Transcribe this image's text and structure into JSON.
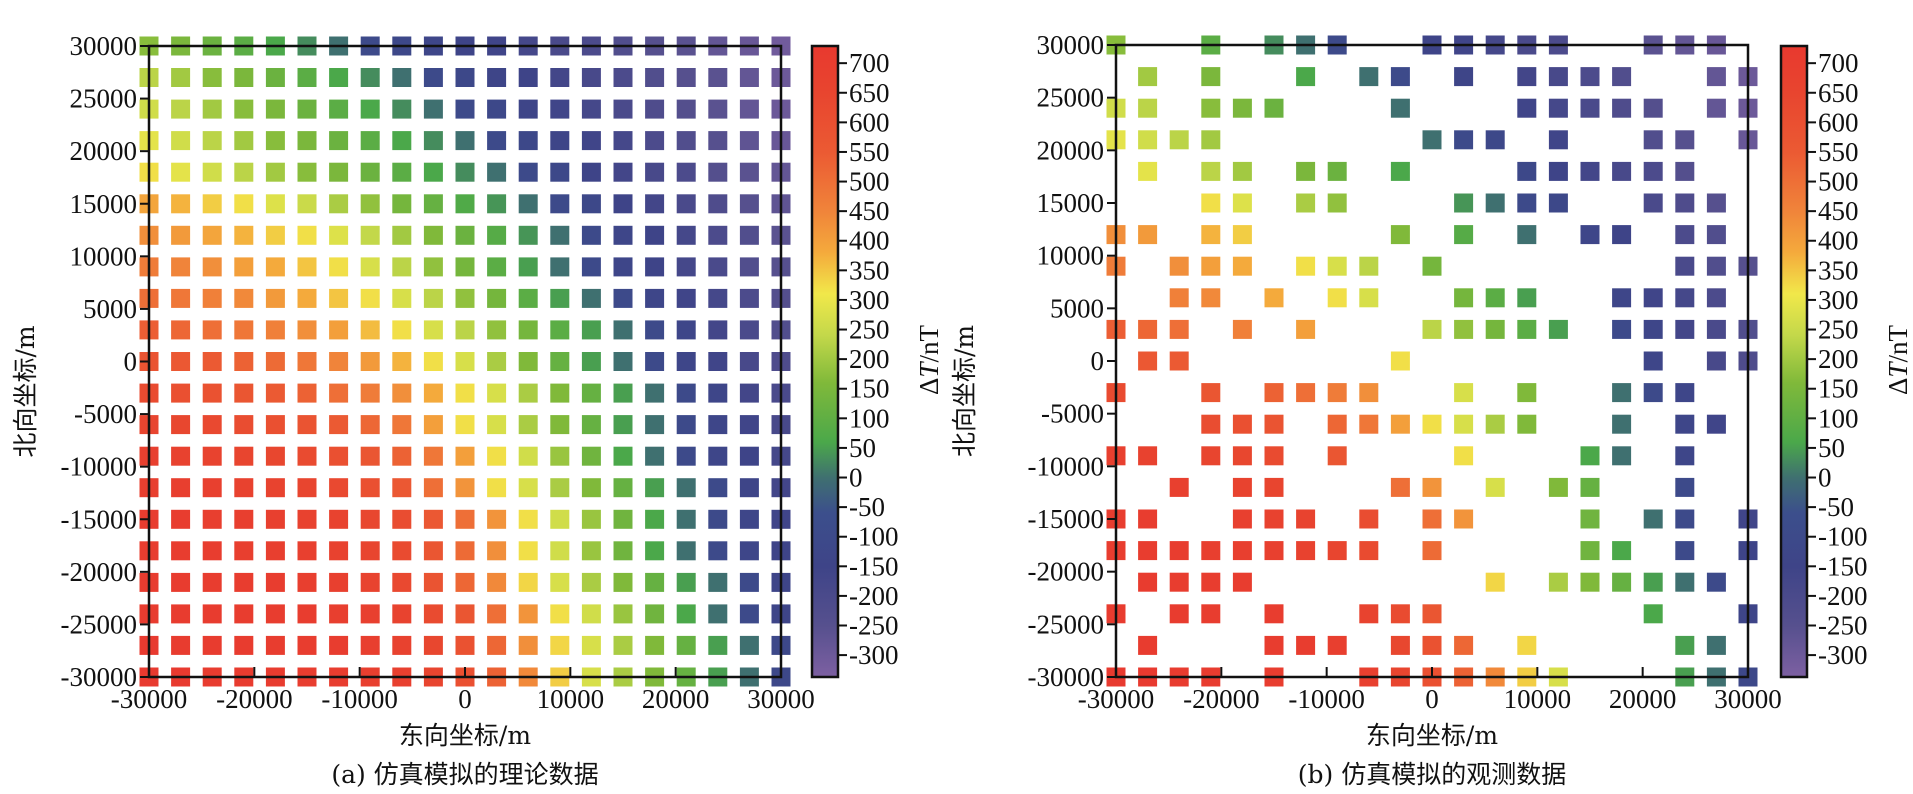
{
  "chart_data": [
    {
      "type": "heatmap",
      "panel": "a",
      "caption": "(a) 仿真模拟的理论数据",
      "xlabel": "东向坐标/m",
      "ylabel": "北向坐标/m",
      "colorbar_label": "ΔT/nT",
      "xlim": [
        -30000,
        30000
      ],
      "ylim": [
        -30000,
        30000
      ],
      "x_ticks": [
        -30000,
        -20000,
        -10000,
        0,
        10000,
        20000,
        30000
      ],
      "x_tick_labels": [
        "-30000",
        "-20000",
        "-10000",
        "0",
        "10000",
        "20000",
        "30000"
      ],
      "y_ticks": [
        30000,
        25000,
        20000,
        15000,
        10000,
        5000,
        0,
        -5000,
        -10000,
        -15000,
        -20000,
        -25000,
        -30000
      ],
      "y_tick_labels": [
        "30000",
        "25000",
        "20000",
        "15000",
        "10000",
        "5000",
        "0",
        "-5000",
        "-10000",
        "-15000",
        "-20000",
        "-25000",
        "-30000"
      ],
      "colorbar_range": [
        -337,
        729
      ],
      "colorbar_ticks": [
        700,
        650,
        600,
        550,
        500,
        450,
        400,
        350,
        300,
        250,
        200,
        150,
        100,
        50,
        0,
        -50,
        -100,
        -150,
        -200,
        -250,
        -300
      ],
      "colorbar_tick_labels": [
        "700",
        "650",
        "600",
        "550",
        "500",
        "450",
        "400",
        "350",
        "300",
        "250",
        "200",
        "150",
        "100",
        "50",
        "0",
        "-50",
        "-100",
        "-150",
        "-200",
        "-250",
        "-300"
      ],
      "grid_x": [
        -30000,
        -27000,
        -24000,
        -21000,
        -18000,
        -15000,
        -12000,
        -9000,
        -6000,
        -3000,
        0,
        3000,
        6000,
        9000,
        12000,
        15000,
        18000,
        21000,
        24000,
        27000,
        30000
      ],
      "grid_y": [
        30000,
        27000,
        24000,
        21000,
        18000,
        15000,
        12000,
        9000,
        6000,
        3000,
        0,
        -3000,
        -6000,
        -9000,
        -12000,
        -15000,
        -18000,
        -21000,
        -24000,
        -27000,
        -30000
      ],
      "values_nT": [
        [
          170,
          150,
          120,
          90,
          60,
          30,
          0,
          -100,
          -120,
          -130,
          -150,
          -160,
          -180,
          -200,
          -210,
          -230,
          -250,
          -260,
          -280,
          -290,
          -310
        ],
        [
          230,
          200,
          170,
          150,
          120,
          90,
          60,
          30,
          0,
          -100,
          -120,
          -140,
          -150,
          -170,
          -190,
          -210,
          -230,
          -250,
          -260,
          -280,
          -300
        ],
        [
          260,
          230,
          200,
          170,
          150,
          120,
          90,
          60,
          30,
          0,
          -100,
          -120,
          -140,
          -160,
          -180,
          -200,
          -220,
          -240,
          -260,
          -280,
          -300
        ],
        [
          290,
          260,
          230,
          200,
          170,
          150,
          120,
          90,
          60,
          30,
          0,
          -100,
          -120,
          -140,
          -160,
          -180,
          -210,
          -230,
          -250,
          -270,
          -290
        ],
        [
          320,
          290,
          260,
          230,
          200,
          170,
          150,
          120,
          90,
          60,
          30,
          0,
          -100,
          -120,
          -150,
          -170,
          -190,
          -210,
          -240,
          -260,
          -280
        ],
        [
          390,
          370,
          340,
          320,
          280,
          250,
          210,
          180,
          140,
          110,
          70,
          40,
          0,
          -100,
          -120,
          -150,
          -170,
          -200,
          -220,
          -250,
          -270
        ],
        [
          430,
          410,
          390,
          370,
          340,
          320,
          280,
          240,
          200,
          160,
          120,
          80,
          40,
          0,
          -100,
          -130,
          -150,
          -180,
          -210,
          -230,
          -260
        ],
        [
          470,
          450,
          430,
          400,
          380,
          350,
          320,
          270,
          230,
          180,
          140,
          90,
          50,
          0,
          -100,
          -130,
          -150,
          -180,
          -200,
          -230,
          -250
        ],
        [
          500,
          480,
          460,
          440,
          410,
          380,
          350,
          320,
          270,
          230,
          180,
          140,
          90,
          50,
          0,
          -100,
          -130,
          -160,
          -180,
          -210,
          -240
        ],
        [
          540,
          520,
          500,
          480,
          460,
          430,
          400,
          360,
          320,
          270,
          230,
          180,
          140,
          90,
          50,
          0,
          -100,
          -130,
          -170,
          -200,
          -230
        ],
        [
          580,
          560,
          550,
          530,
          510,
          480,
          450,
          410,
          370,
          320,
          270,
          210,
          160,
          110,
          50,
          0,
          -100,
          -130,
          -160,
          -190,
          -220
        ],
        [
          620,
          600,
          590,
          570,
          550,
          530,
          500,
          470,
          430,
          380,
          320,
          270,
          210,
          160,
          110,
          50,
          0,
          -100,
          -130,
          -170,
          -200
        ],
        [
          650,
          640,
          630,
          610,
          600,
          580,
          550,
          520,
          480,
          400,
          320,
          270,
          210,
          160,
          110,
          50,
          0,
          -100,
          -130,
          -160,
          -190
        ],
        [
          680,
          670,
          660,
          650,
          640,
          620,
          600,
          570,
          530,
          480,
          400,
          320,
          260,
          190,
          130,
          60,
          0,
          -100,
          -130,
          -150,
          -180
        ],
        [
          690,
          690,
          680,
          670,
          660,
          650,
          630,
          600,
          560,
          500,
          420,
          320,
          270,
          210,
          160,
          110,
          50,
          0,
          -100,
          -140,
          -170
        ],
        [
          700,
          700,
          690,
          690,
          680,
          670,
          660,
          640,
          610,
          560,
          500,
          420,
          320,
          260,
          190,
          130,
          60,
          0,
          -100,
          -130,
          -160
        ],
        [
          700,
          700,
          700,
          690,
          690,
          680,
          670,
          650,
          620,
          570,
          510,
          430,
          320,
          260,
          190,
          130,
          60,
          0,
          -100,
          -130,
          -150
        ],
        [
          710,
          710,
          700,
          700,
          700,
          690,
          680,
          660,
          630,
          580,
          520,
          440,
          330,
          270,
          210,
          160,
          110,
          50,
          0,
          -100,
          -140
        ],
        [
          710,
          710,
          710,
          700,
          700,
          700,
          690,
          680,
          660,
          620,
          570,
          500,
          420,
          320,
          260,
          190,
          130,
          60,
          0,
          -100,
          -140
        ],
        [
          720,
          710,
          710,
          710,
          700,
          700,
          700,
          690,
          670,
          640,
          590,
          520,
          430,
          330,
          270,
          210,
          160,
          110,
          50,
          0,
          -120
        ],
        [
          720,
          720,
          710,
          710,
          710,
          700,
          700,
          690,
          680,
          650,
          600,
          530,
          440,
          340,
          270,
          210,
          160,
          110,
          50,
          0,
          -120
        ]
      ]
    },
    {
      "type": "heatmap",
      "panel": "b",
      "caption": "(b) 仿真模拟的观测数据",
      "xlabel": "东向坐标/m",
      "ylabel": "北向坐标/m",
      "colorbar_label": "ΔT/nT",
      "xlim": [
        -30000,
        30000
      ],
      "ylim": [
        -30000,
        30000
      ],
      "x_ticks": [
        -30000,
        -20000,
        -10000,
        0,
        10000,
        20000,
        30000
      ],
      "x_tick_labels": [
        "-30000",
        "-20000",
        "-10000",
        "0",
        "10000",
        "20000",
        "30000"
      ],
      "y_ticks": [
        30000,
        25000,
        20000,
        15000,
        10000,
        5000,
        0,
        -5000,
        -10000,
        -15000,
        -20000,
        -25000,
        -30000
      ],
      "y_tick_labels": [
        "30000",
        "25000",
        "20000",
        "15000",
        "10000",
        "5000",
        "0",
        "-5000",
        "-10000",
        "-15000",
        "-20000",
        "-25000",
        "-30000"
      ],
      "colorbar_range": [
        -337,
        729
      ],
      "colorbar_ticks": [
        700,
        650,
        600,
        550,
        500,
        450,
        400,
        350,
        300,
        250,
        200,
        150,
        100,
        50,
        0,
        -50,
        -100,
        -150,
        -200,
        -250,
        -300
      ],
      "colorbar_tick_labels": [
        "700",
        "650",
        "600",
        "550",
        "500",
        "450",
        "400",
        "350",
        "300",
        "250",
        "200",
        "150",
        "100",
        "50",
        "0",
        "-50",
        "-100",
        "-150",
        "-200",
        "-250",
        "-300"
      ],
      "observed_from": "panel a values at sampled grid nodes",
      "observed_columns_by_row": [
        [
          0,
          3,
          5,
          6,
          7,
          10,
          11,
          12,
          13,
          14,
          17,
          18,
          19
        ],
        [
          1,
          3,
          6,
          8,
          9,
          11,
          13,
          14,
          15,
          16,
          19,
          20
        ],
        [
          0,
          1,
          3,
          4,
          5,
          9,
          13,
          14,
          15,
          16,
          17,
          19,
          20
        ],
        [
          0,
          1,
          2,
          3,
          10,
          11,
          12,
          14,
          17,
          18,
          20
        ],
        [
          1,
          3,
          4,
          6,
          7,
          9,
          13,
          14,
          15,
          16,
          17,
          18
        ],
        [
          3,
          4,
          6,
          7,
          11,
          12,
          13,
          14,
          17,
          18,
          19
        ],
        [
          0,
          1,
          3,
          4,
          9,
          11,
          13,
          15,
          16,
          18,
          19
        ],
        [
          0,
          2,
          3,
          4,
          6,
          7,
          8,
          10,
          18,
          19,
          20
        ],
        [
          2,
          3,
          5,
          7,
          8,
          11,
          12,
          13,
          16,
          17,
          18,
          19
        ],
        [
          0,
          1,
          2,
          4,
          6,
          10,
          11,
          12,
          13,
          14,
          16,
          17,
          18,
          19,
          20
        ],
        [
          1,
          2,
          9,
          17,
          19,
          20
        ],
        [
          0,
          3,
          5,
          6,
          7,
          8,
          11,
          13,
          16,
          17,
          18
        ],
        [
          3,
          4,
          5,
          7,
          8,
          9,
          10,
          11,
          12,
          13,
          16,
          18,
          19
        ],
        [
          0,
          1,
          3,
          4,
          5,
          7,
          11,
          15,
          16,
          18
        ],
        [
          2,
          4,
          5,
          9,
          10,
          12,
          14,
          15,
          18
        ],
        [
          0,
          1,
          4,
          5,
          6,
          8,
          10,
          11,
          15,
          17,
          18,
          20
        ],
        [
          0,
          1,
          2,
          3,
          4,
          5,
          6,
          7,
          8,
          10,
          15,
          16,
          18,
          20
        ],
        [
          1,
          2,
          3,
          4,
          12,
          14,
          15,
          16,
          17,
          18,
          19
        ],
        [
          0,
          2,
          3,
          5,
          8,
          9,
          10,
          17,
          20
        ],
        [
          1,
          5,
          6,
          7,
          9,
          10,
          11,
          13,
          18,
          19
        ],
        [
          0,
          1,
          2,
          3,
          5,
          8,
          9,
          10,
          11,
          12,
          13,
          14,
          18,
          19,
          20
        ]
      ]
    }
  ],
  "colormap": [
    {
      "value": 729,
      "color": "#e8392f"
    },
    {
      "value": 650,
      "color": "#e8452f"
    },
    {
      "value": 550,
      "color": "#eb5a33"
    },
    {
      "value": 450,
      "color": "#f0843a"
    },
    {
      "value": 380,
      "color": "#f4aa3c"
    },
    {
      "value": 310,
      "color": "#f1e84a"
    },
    {
      "value": 240,
      "color": "#c3d84a"
    },
    {
      "value": 160,
      "color": "#80b93a"
    },
    {
      "value": 60,
      "color": "#4ba84a"
    },
    {
      "value": 0,
      "color": "#3f7070"
    },
    {
      "value": -60,
      "color": "#3c4f8c"
    },
    {
      "value": -150,
      "color": "#3e4488"
    },
    {
      "value": -250,
      "color": "#56508e"
    },
    {
      "value": -337,
      "color": "#7d60a2"
    }
  ]
}
